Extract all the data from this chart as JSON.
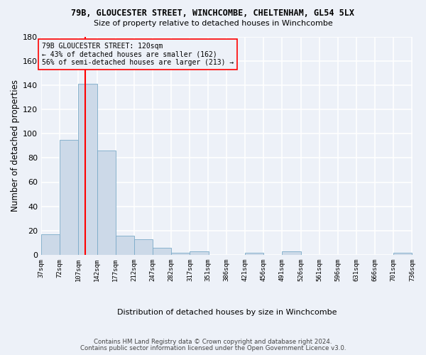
{
  "title1": "79B, GLOUCESTER STREET, WINCHCOMBE, CHELTENHAM, GL54 5LX",
  "title2": "Size of property relative to detached houses in Winchcombe",
  "xlabel": "Distribution of detached houses by size in Winchcombe",
  "ylabel": "Number of detached properties",
  "footnote1": "Contains HM Land Registry data © Crown copyright and database right 2024.",
  "footnote2": "Contains public sector information licensed under the Open Government Licence v3.0.",
  "bin_edges": [
    37,
    72,
    107,
    142,
    177,
    212,
    247,
    282,
    317,
    351,
    386,
    421,
    456,
    491,
    526,
    561,
    596,
    631,
    666,
    701,
    736
  ],
  "bar_heights": [
    17,
    95,
    141,
    86,
    16,
    13,
    6,
    2,
    3,
    0,
    0,
    2,
    0,
    3,
    0,
    0,
    0,
    0,
    0,
    2
  ],
  "bar_color": "#ccd9e8",
  "bar_edgecolor": "#7aaac8",
  "background_color": "#edf1f8",
  "grid_color": "#ffffff",
  "red_line_x": 120,
  "annotation_line1": "79B GLOUCESTER STREET: 120sqm",
  "annotation_line2": "← 43% of detached houses are smaller (162)",
  "annotation_line3": "56% of semi-detached houses are larger (213) →",
  "ylim": [
    0,
    180
  ],
  "yticks": [
    0,
    20,
    40,
    60,
    80,
    100,
    120,
    140,
    160,
    180
  ],
  "property_size": 120
}
